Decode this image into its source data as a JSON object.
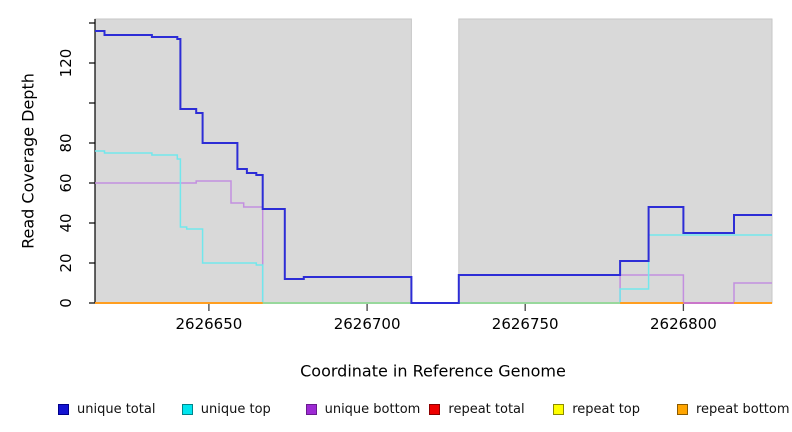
{
  "chart_data": {
    "type": "line",
    "subtype": "step",
    "title": "",
    "xlabel": "Coordinate in Reference Genome",
    "ylabel": "Read Coverage Depth",
    "xlim": [
      2626614,
      2626828
    ],
    "ylim": [
      0,
      142
    ],
    "grid": false,
    "plot_background": "#d9d9d9",
    "plot_background_border": "#c6c6c6",
    "coverage_gap_x": [
      2626714,
      2626729
    ],
    "x_ticks": [
      2626650,
      2626700,
      2626750,
      2626800
    ],
    "x_tick_labels": [
      "2626650",
      "2626700",
      "2626750",
      "2626800"
    ],
    "y_ticks": [
      0,
      20,
      40,
      60,
      80,
      100,
      120,
      140
    ],
    "y_tick_labels": [
      "0",
      "20",
      "40",
      "60",
      "80",
      "",
      "120",
      ""
    ],
    "axis_color": "#000000",
    "x_tick_color": "#444444",
    "series": [
      {
        "name": "unique total",
        "color": "#2d2dd6",
        "line_width": 2,
        "points": [
          [
            2626614,
            136
          ],
          [
            2626617,
            134
          ],
          [
            2626632,
            133
          ],
          [
            2626640,
            132
          ],
          [
            2626641,
            97
          ],
          [
            2626646,
            95
          ],
          [
            2626648,
            80
          ],
          [
            2626659,
            67
          ],
          [
            2626662,
            65
          ],
          [
            2626665,
            64
          ],
          [
            2626667,
            47
          ],
          [
            2626674,
            12
          ],
          [
            2626680,
            13
          ],
          [
            2626714,
            0
          ],
          [
            2626729,
            14
          ],
          [
            2626780,
            21
          ],
          [
            2626789,
            48
          ],
          [
            2626800,
            35
          ],
          [
            2626816,
            44
          ]
        ]
      },
      {
        "name": "unique top",
        "color": "#72e7ec",
        "line_width": 1.5,
        "points": [
          [
            2626614,
            76
          ],
          [
            2626617,
            75
          ],
          [
            2626632,
            74
          ],
          [
            2626640,
            72
          ],
          [
            2626641,
            38
          ],
          [
            2626643,
            37
          ],
          [
            2626648,
            20
          ],
          [
            2626665,
            19
          ],
          [
            2626667,
            0
          ],
          [
            2626780,
            7
          ],
          [
            2626789,
            34
          ]
        ]
      },
      {
        "name": "unique bottom",
        "color": "#c38fdf",
        "line_width": 1.5,
        "points": [
          [
            2626614,
            60
          ],
          [
            2626646,
            61
          ],
          [
            2626657,
            50
          ],
          [
            2626661,
            48
          ],
          [
            2626667,
            0
          ],
          [
            2626780,
            14
          ],
          [
            2626800,
            0
          ],
          [
            2626816,
            10
          ]
        ]
      },
      {
        "name": "repeat total",
        "color": "#cd2626",
        "line_width": 1.5,
        "points": [
          [
            2626614,
            0
          ]
        ]
      },
      {
        "name": "repeat top",
        "color": "#e6e632",
        "line_width": 1.5,
        "points": [
          [
            2626614,
            0
          ]
        ]
      },
      {
        "name": "repeat bottom",
        "color": "#ff9e20",
        "line_width": 2,
        "points": [
          [
            2626614,
            0
          ]
        ]
      }
    ],
    "baseline_overlays": [
      {
        "name": "unique-top-repeat-top-blend",
        "color": "#98d89c",
        "x0": 2626667,
        "x1": 2626780
      },
      {
        "name": "unique-bottom-at-zero",
        "color": "#ca76ca",
        "x0": 2626800,
        "x1": 2626816
      }
    ],
    "legend": [
      {
        "label": "unique total",
        "fill": "#1414d2",
        "border": "#00008b"
      },
      {
        "label": "unique top",
        "fill": "#00e5ee",
        "border": "#00868b"
      },
      {
        "label": "unique bottom",
        "fill": "#9d2ad4",
        "border": "#6a1b8e"
      },
      {
        "label": "repeat total",
        "fill": "#ee0000",
        "border": "#8b0000"
      },
      {
        "label": "repeat top",
        "fill": "#ffff00",
        "border": "#8b8b00"
      },
      {
        "label": "repeat bottom",
        "fill": "#ffa500",
        "border": "#8b5a00"
      }
    ],
    "legend_position": "bottom"
  }
}
